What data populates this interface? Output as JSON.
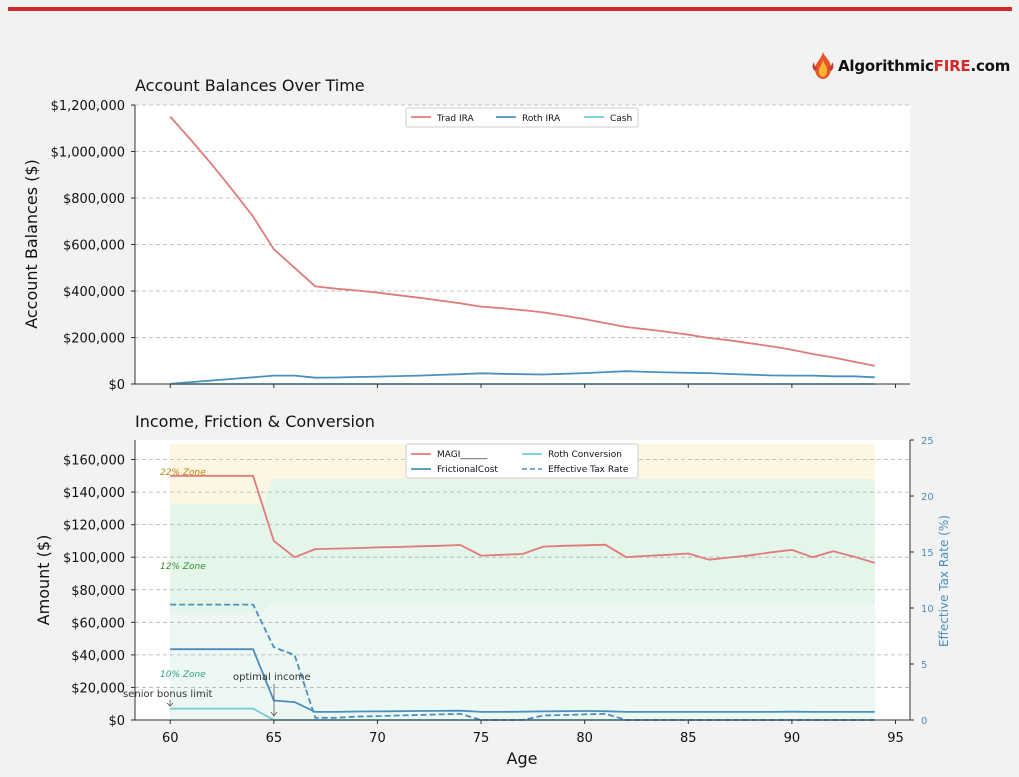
{
  "logo": {
    "part1": "Algorithmic",
    "part2": "FIRE",
    "part3": ".com"
  },
  "colors": {
    "trad": "#e07b7b",
    "roth": "#4a90bf",
    "cash": "#6cccd8",
    "eff": "#4a90bf",
    "bar": "#d42a2a"
  },
  "chart_data": [
    {
      "type": "line",
      "title": "Account Balances Over Time",
      "ylabel": "Account Balances ($)",
      "xlabel": "",
      "xlim": [
        58.3,
        95.7
      ],
      "ylim": [
        0,
        1200000
      ],
      "yticks": [
        0,
        200000,
        400000,
        600000,
        800000,
        1000000,
        1200000
      ],
      "ytick_labels": [
        "$0",
        "$200,000",
        "$400,000",
        "$600,000",
        "$800,000",
        "$1,000,000",
        "$1,200,000"
      ],
      "xticks": [
        60,
        65,
        70,
        75,
        80,
        85,
        90,
        95
      ],
      "grid": true,
      "legend": "top-center",
      "x": [
        60,
        61,
        62,
        63,
        64,
        65,
        66,
        67,
        68,
        69,
        70,
        71,
        72,
        73,
        74,
        75,
        76,
        77,
        78,
        79,
        80,
        81,
        82,
        83,
        84,
        85,
        86,
        87,
        88,
        89,
        90,
        91,
        92,
        93,
        94
      ],
      "series": [
        {
          "name": "Trad IRA",
          "color": "#e07b7b",
          "values": [
            1150000,
            1050000,
            945000,
            835000,
            720000,
            580000,
            500000,
            420000,
            410000,
            402000,
            393000,
            382000,
            371000,
            359000,
            347000,
            333000,
            326000,
            318000,
            308000,
            294000,
            279000,
            262000,
            245000,
            235000,
            224000,
            212000,
            198000,
            188000,
            175000,
            162000,
            147000,
            129000,
            114000,
            96000,
            78000
          ]
        },
        {
          "name": "Roth IRA",
          "color": "#4a90bf",
          "values": [
            1000,
            8000,
            15000,
            22000,
            29000,
            36000,
            36000,
            27000,
            28000,
            30000,
            32000,
            34000,
            36000,
            39000,
            42000,
            46000,
            44000,
            42000,
            41000,
            44000,
            47000,
            51000,
            55000,
            52000,
            50000,
            48000,
            47000,
            43000,
            40000,
            37000,
            36000,
            36000,
            33000,
            33000,
            29000
          ]
        },
        {
          "name": "Cash",
          "color": "#6cccd8",
          "values": [
            0,
            0,
            0,
            0,
            0,
            0,
            0,
            0,
            0,
            0,
            0,
            0,
            0,
            0,
            0,
            0,
            0,
            0,
            0,
            0,
            0,
            0,
            0,
            0,
            0,
            0,
            0,
            0,
            0,
            0,
            0,
            0,
            0,
            0,
            0
          ]
        }
      ]
    },
    {
      "type": "line",
      "title": "Income, Friction & Conversion",
      "ylabel": "Amount ($)",
      "ylabel_right": "Effective Tax Rate (%)",
      "xlabel": "Age",
      "xlim": [
        58.3,
        95.7
      ],
      "ylim": [
        0,
        172000
      ],
      "ylim_right": [
        0,
        25
      ],
      "yticks": [
        0,
        20000,
        40000,
        60000,
        80000,
        100000,
        120000,
        140000,
        160000
      ],
      "ytick_labels": [
        "$0",
        "$20,000",
        "$40,000",
        "$60,000",
        "$80,000",
        "$100,000",
        "$120,000",
        "$140,000",
        "$160,000"
      ],
      "yticks_right": [
        0,
        5,
        10,
        15,
        20,
        25
      ],
      "ytick_labels_right": [
        "0",
        "5",
        "10",
        "15",
        "20",
        "25"
      ],
      "xticks": [
        60,
        65,
        70,
        75,
        80,
        85,
        90,
        95
      ],
      "xtick_labels": [
        "60",
        "65",
        "70",
        "75",
        "80",
        "85",
        "90",
        "95"
      ],
      "grid": true,
      "legend": "top-center",
      "zones": [
        {
          "label": "22% Zone",
          "color": "#b8860b",
          "fill": "#fdf6e3"
        },
        {
          "label": "12% Zone",
          "color": "#2e8b2e",
          "fill": "#e4f5ea"
        },
        {
          "label": "10% Zone",
          "color": "#2aa088",
          "fill": "#eaf7f1"
        }
      ],
      "annotations": [
        {
          "text": "senior bonus limit",
          "x": 60,
          "y": 8000
        },
        {
          "text": "optimal income",
          "x": 65,
          "y": 0
        }
      ],
      "x": [
        60,
        61,
        62,
        63,
        64,
        65,
        66,
        67,
        68,
        69,
        70,
        71,
        72,
        73,
        74,
        75,
        76,
        77,
        78,
        79,
        80,
        81,
        82,
        83,
        84,
        85,
        86,
        87,
        88,
        89,
        90,
        91,
        92,
        93,
        94
      ],
      "series": [
        {
          "name": "MAGI______",
          "color": "#e07b7b",
          "axis": "left",
          "style": "solid",
          "values": [
            150000,
            150000,
            150000,
            150000,
            150000,
            110000,
            100000,
            105000,
            105300,
            105600,
            106000,
            106300,
            106700,
            107000,
            107500,
            101000,
            101500,
            102000,
            106500,
            107000,
            107300,
            107700,
            100000,
            100800,
            101500,
            102300,
            98500,
            99800,
            101200,
            103000,
            104500,
            100000,
            103700,
            100300,
            96500
          ]
        },
        {
          "name": "FrictionalCost",
          "color": "#4a90bf",
          "axis": "left",
          "style": "solid",
          "values": [
            43500,
            43500,
            43500,
            43500,
            43500,
            12000,
            11000,
            5000,
            5000,
            5200,
            5300,
            5400,
            5500,
            5600,
            5700,
            5000,
            5000,
            5100,
            5300,
            5400,
            5500,
            5400,
            5000,
            5000,
            5000,
            5000,
            5000,
            5000,
            5000,
            5000,
            5100,
            5000,
            5000,
            5000,
            5000
          ]
        },
        {
          "name": "Roth Conversion",
          "color": "#6cccd8",
          "axis": "left",
          "style": "solid",
          "values": [
            7000,
            7000,
            7000,
            7000,
            7000,
            0,
            0,
            0,
            0,
            0,
            0,
            0,
            0,
            0,
            0,
            0,
            0,
            0,
            0,
            0,
            0,
            0,
            0,
            0,
            0,
            0,
            0,
            0,
            0,
            0,
            0,
            0,
            0,
            0,
            0
          ]
        },
        {
          "name": "Effective Tax Rate",
          "color": "#4a90bf",
          "axis": "right",
          "style": "dashed",
          "values": [
            10.3,
            10.3,
            10.3,
            10.3,
            10.3,
            6.5,
            5.8,
            0.2,
            0.2,
            0.3,
            0.35,
            0.4,
            0.45,
            0.5,
            0.55,
            0,
            0,
            0,
            0.4,
            0.45,
            0.5,
            0.55,
            0,
            0,
            0,
            0,
            0,
            0,
            0,
            0,
            0,
            0,
            0,
            0,
            0
          ]
        }
      ]
    }
  ]
}
